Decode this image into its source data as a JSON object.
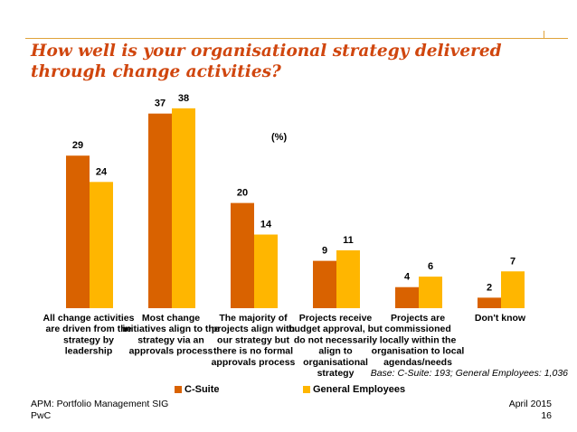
{
  "colors": {
    "csuite": "#d96200",
    "general": "#ffb600",
    "title": "#d0460e",
    "accent_line": "#e0a33a"
  },
  "page": {
    "title": "How well is your organisational strategy delivered through change activities?",
    "unit_label": "(%)",
    "base_note": "Base: C-Suite: 193; General Employees: 1,036",
    "footer_left_line1": "APM: Portfolio Management SIG",
    "footer_left_line2": "PwC",
    "footer_right_line1": "April 2015",
    "footer_right_line2": "16"
  },
  "chart_data": {
    "type": "bar",
    "title": "How well is your organisational strategy delivered through change activities?",
    "ylabel": "(%)",
    "ylim": [
      0,
      40
    ],
    "grid": false,
    "legend_position": "bottom",
    "categories": [
      [
        "All change activities",
        "are driven from the",
        "strategy by",
        "leadership"
      ],
      [
        "Most change",
        "initiatives align to the",
        "strategy via an",
        "approvals process"
      ],
      [
        "The majority of",
        "projects align with",
        "our strategy but",
        "there is no formal",
        "approvals process"
      ],
      [
        "Projects receive",
        "budget approval, but",
        "do not necessarily",
        "align to",
        "organisational",
        "strategy"
      ],
      [
        "Projects are",
        "commissioned",
        "locally within the",
        "organisation to local",
        "agendas/needs"
      ],
      [
        "Don't know"
      ]
    ],
    "series": [
      {
        "name": "C-Suite",
        "values": [
          29,
          37,
          20,
          9,
          4,
          2
        ]
      },
      {
        "name": "General Employees",
        "values": [
          24,
          38,
          14,
          11,
          6,
          7
        ]
      }
    ]
  }
}
